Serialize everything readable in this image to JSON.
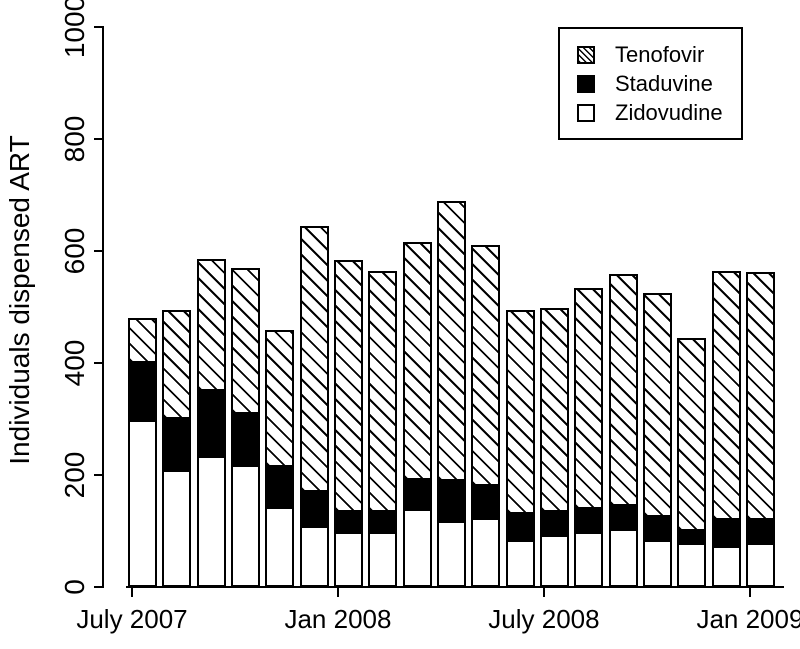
{
  "colors": {
    "foreground": "#000000",
    "background": "#ffffff"
  },
  "chart_data": {
    "type": "bar",
    "stacked": true,
    "title": "",
    "xlabel": "",
    "ylabel": "Individuals dispensed ART",
    "ylim": [
      0,
      1000
    ],
    "yticks": [
      0,
      200,
      400,
      600,
      800,
      1000
    ],
    "n_bars": 19,
    "x_span": "monthly bars, July 2007 through Jan 2009",
    "xticks": [
      {
        "label": "July 2007",
        "bar_index": 0
      },
      {
        "label": "Jan 2008",
        "bar_index": 6
      },
      {
        "label": "July 2008",
        "bar_index": 12
      },
      {
        "label": "Jan 2009",
        "bar_index": 18
      }
    ],
    "series": [
      {
        "name": "Zidovudine",
        "fill": "white",
        "stack_order": 1,
        "values": [
          295,
          205,
          230,
          215,
          140,
          105,
          95,
          95,
          135,
          115,
          120,
          80,
          90,
          95,
          100,
          80,
          75,
          70,
          75
        ]
      },
      {
        "name": "Staduvine",
        "fill": "black",
        "stack_order": 2,
        "values": [
          105,
          95,
          120,
          95,
          75,
          65,
          40,
          40,
          55,
          75,
          60,
          50,
          45,
          45,
          45,
          45,
          25,
          50,
          45
        ]
      },
      {
        "name": "Tenofovir",
        "fill": "hatch",
        "stack_order": 3,
        "values": [
          80,
          195,
          235,
          260,
          245,
          475,
          450,
          430,
          425,
          500,
          430,
          365,
          365,
          395,
          415,
          400,
          345,
          445,
          442
        ]
      }
    ],
    "stacked_totals": [
      480,
      495,
      585,
      570,
      460,
      645,
      585,
      565,
      615,
      690,
      610,
      495,
      500,
      535,
      560,
      525,
      445,
      565,
      562
    ],
    "legend": {
      "position": "top-right",
      "entries": [
        "Tenofovir",
        "Staduvine",
        "Zidovudine"
      ]
    },
    "grid": false
  }
}
